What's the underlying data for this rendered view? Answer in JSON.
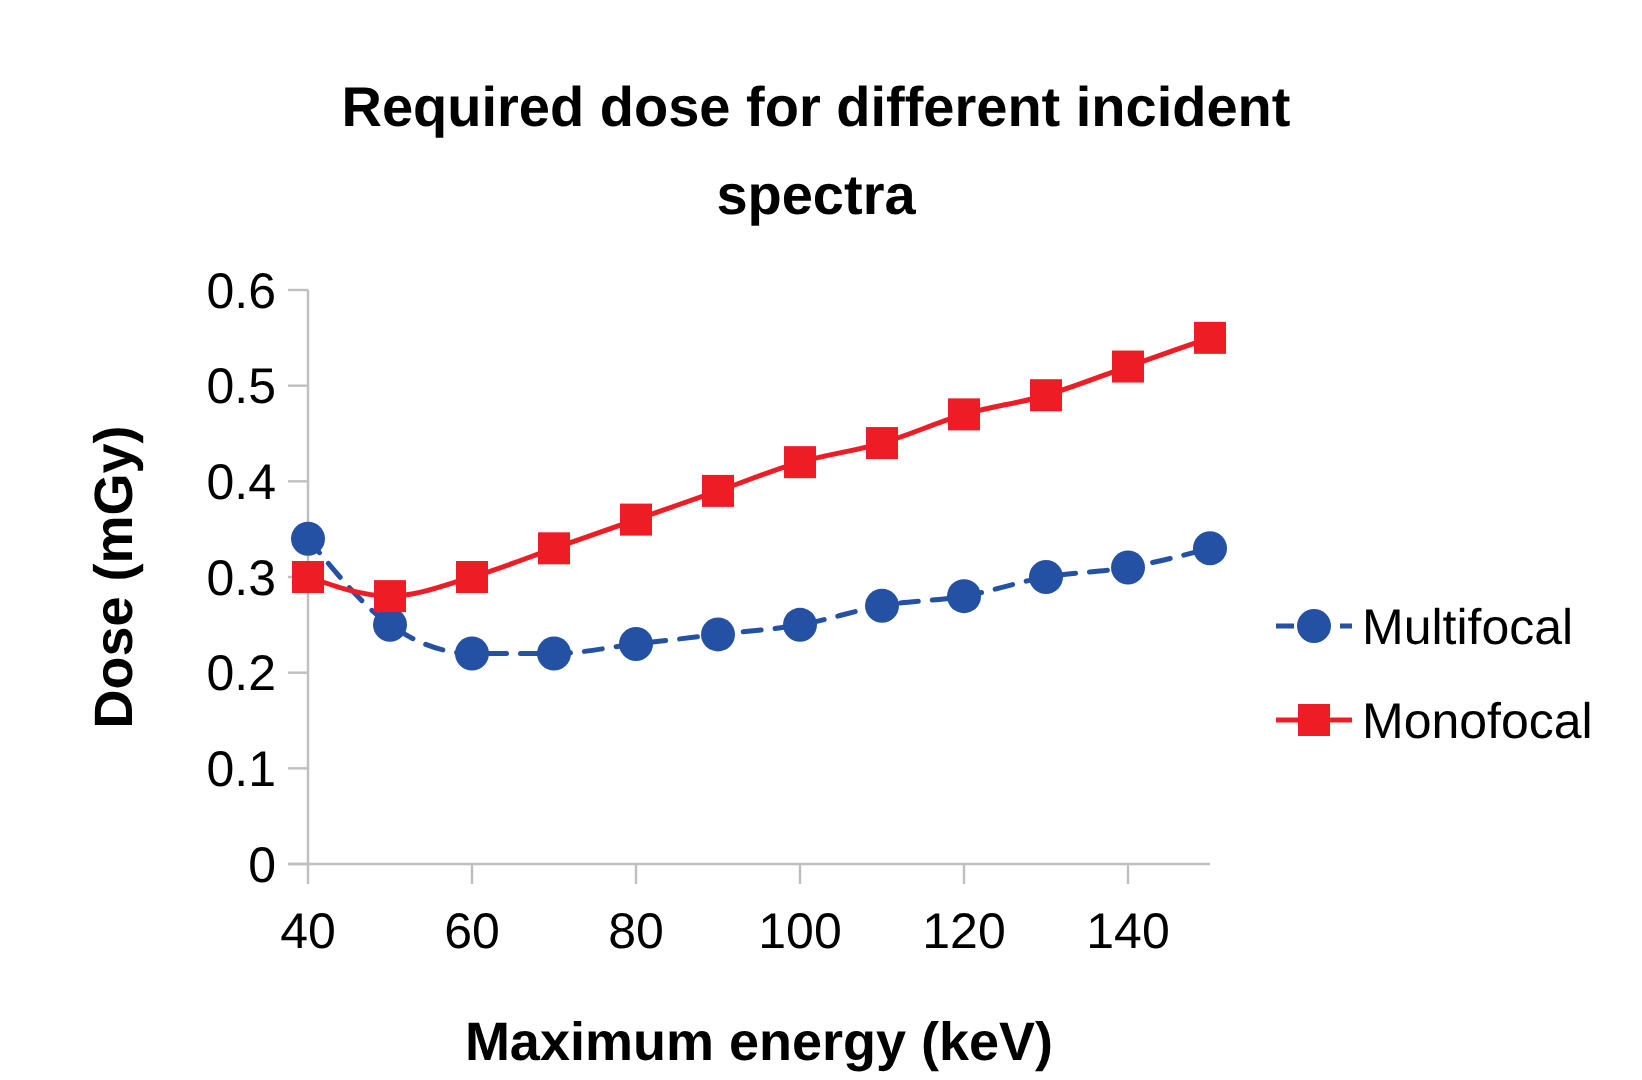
{
  "chart_data": {
    "type": "line",
    "title": "Required dose for different incident spectra",
    "xlabel": "Maximum energy (keV)",
    "ylabel": "Dose (mGy)",
    "x": [
      40,
      50,
      60,
      70,
      80,
      90,
      100,
      110,
      120,
      130,
      140,
      150
    ],
    "series": [
      {
        "name": "Multifocal",
        "color": "#2451a4",
        "marker": "circle",
        "line_style": "dashed",
        "values": [
          0.34,
          0.25,
          0.22,
          0.22,
          0.23,
          0.24,
          0.25,
          0.27,
          0.28,
          0.3,
          0.31,
          0.33
        ]
      },
      {
        "name": "Monofocal",
        "color": "#ee1c25",
        "marker": "square",
        "line_style": "solid",
        "values": [
          0.3,
          0.28,
          0.3,
          0.33,
          0.36,
          0.39,
          0.42,
          0.44,
          0.47,
          0.49,
          0.52,
          0.55
        ]
      }
    ],
    "xlim": [
      40,
      150
    ],
    "xticks": [
      40,
      60,
      80,
      100,
      120,
      140
    ],
    "ylim": [
      0,
      0.6
    ],
    "yticks": [
      0,
      0.1,
      0.2,
      0.3,
      0.4,
      0.5,
      0.6
    ],
    "grid": false,
    "legend": "right"
  }
}
